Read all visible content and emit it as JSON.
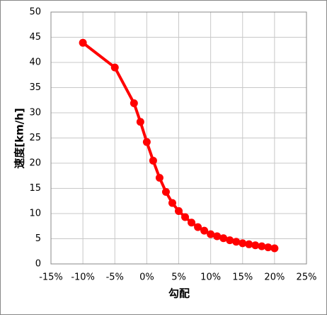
{
  "chart_data": {
    "type": "line",
    "x_label": "勾配",
    "y_label": "速度[km/h]",
    "x": [
      -10,
      -5,
      -2,
      -1,
      0,
      1,
      2,
      3,
      4,
      5,
      6,
      7,
      8,
      9,
      10,
      11,
      12,
      13,
      14,
      15,
      16,
      17,
      18,
      19,
      20
    ],
    "values": [
      43.9,
      39.0,
      31.9,
      28.2,
      24.2,
      20.5,
      17.1,
      14.3,
      12.1,
      10.5,
      9.3,
      8.2,
      7.3,
      6.6,
      5.9,
      5.5,
      5.1,
      4.7,
      4.4,
      4.1,
      3.9,
      3.7,
      3.5,
      3.3,
      3.1
    ],
    "color": "#ff0000",
    "xlim": [
      -15,
      25
    ],
    "xticks": [
      {
        "value": -15,
        "label": "-15%"
      },
      {
        "value": -10,
        "label": "-10%"
      },
      {
        "value": -5,
        "label": "-5%"
      },
      {
        "value": 0,
        "label": "0%"
      },
      {
        "value": 5,
        "label": "5%"
      },
      {
        "value": 10,
        "label": "10%"
      },
      {
        "value": 15,
        "label": "15%"
      },
      {
        "value": 20,
        "label": "20%"
      },
      {
        "value": 25,
        "label": "25%"
      }
    ],
    "ylim": [
      0,
      50
    ],
    "yticks": [
      0,
      5,
      10,
      15,
      20,
      25,
      30,
      35,
      40,
      45,
      50
    ],
    "grid": true
  }
}
